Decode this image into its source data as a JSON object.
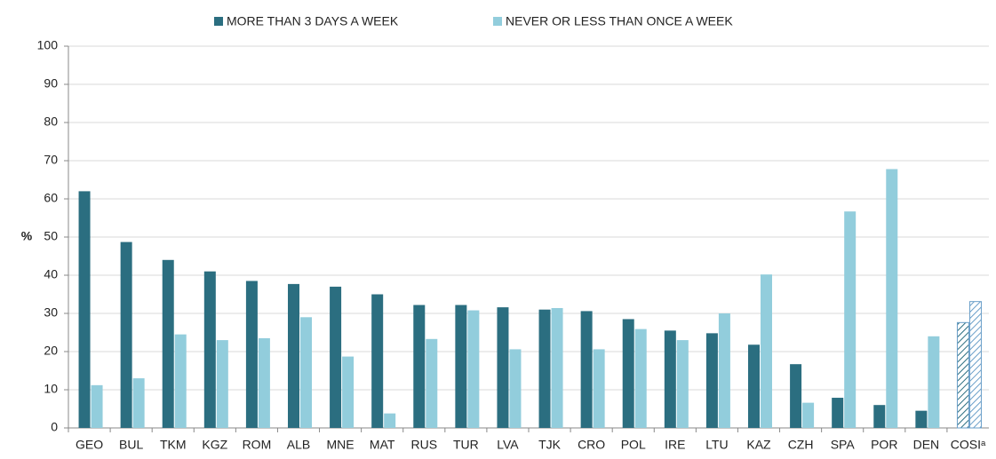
{
  "chart_data": {
    "type": "bar",
    "ylabel": "%",
    "categories": [
      "GEO",
      "BUL",
      "TKM",
      "KGZ",
      "ROM",
      "ALB",
      "MNE",
      "MAT",
      "RUS",
      "TUR",
      "LVA",
      "TJK",
      "CRO",
      "POL",
      "IRE",
      "LTU",
      "KAZ",
      "CZH",
      "SPA",
      "POR",
      "DEN",
      "COSIᵃ"
    ],
    "series": [
      {
        "name": "MORE THAN 3 DAYS A WEEK",
        "color": "#2b6e80",
        "values": [
          62,
          48.7,
          44,
          41,
          38.5,
          37.7,
          37,
          35,
          32.2,
          32.2,
          31.6,
          31,
          30.6,
          28.5,
          25.5,
          24.8,
          21.8,
          16.7,
          7.9,
          6,
          4.5,
          27.6
        ]
      },
      {
        "name": "NEVER OR LESS THAN ONCE A WEEK",
        "color": "#92cddc",
        "values": [
          11.2,
          13,
          24.5,
          23,
          23.5,
          29,
          18.7,
          3.8,
          23.3,
          30.8,
          20.6,
          31.4,
          20.6,
          25.9,
          23,
          30,
          40.2,
          6.6,
          56.7,
          67.8,
          24,
          33.1
        ]
      }
    ],
    "hatched": [
      21
    ],
    "ylim": [
      0,
      100
    ],
    "yticks": [
      0,
      10,
      20,
      30,
      40,
      50,
      60,
      70,
      80,
      90,
      100
    ],
    "grid": true,
    "legend": "top"
  }
}
